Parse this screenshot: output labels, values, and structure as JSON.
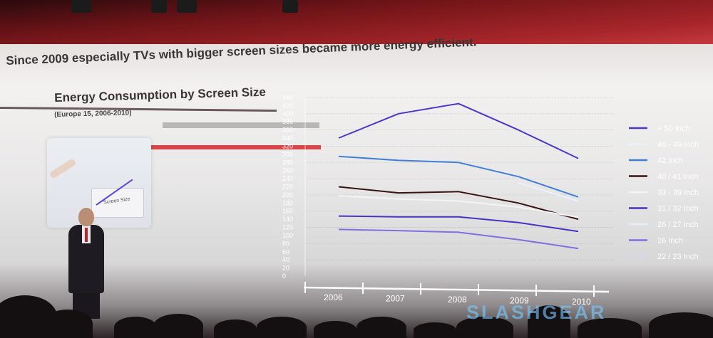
{
  "headline": "Since 2009 especially TVs with bigger screen sizes became more energy efficient.",
  "illustration": {
    "label": "Screen Size"
  },
  "watermark": "SLASHGEAR",
  "colors": {
    "slide_red": "#c33a3c",
    "accent_red_bar": "#d8464a"
  },
  "chart_data": {
    "type": "line",
    "title": "Energy Consumption by Screen Size",
    "subtitle": "(Europe 15, 2006-2010)",
    "xlabel": "",
    "ylabel": "",
    "x": [
      "2006",
      "2007",
      "2008",
      "2009",
      "2010"
    ],
    "ylim": [
      0,
      440
    ],
    "yticks": [
      0,
      20,
      40,
      60,
      80,
      100,
      120,
      140,
      160,
      180,
      200,
      220,
      240,
      260,
      280,
      300,
      320,
      340,
      360,
      380,
      400,
      420,
      440
    ],
    "legend_position": "right",
    "grid": true,
    "series": [
      {
        "name": "+ 50 Inch",
        "color": "#4a38c8",
        "values": [
          340,
          400,
          425,
          360,
          290
        ]
      },
      {
        "name": "46 - 49 Inch",
        "color": "#e8f2fb",
        "values": [
          null,
          null,
          null,
          230,
          185
        ]
      },
      {
        "name": "42 Inch",
        "color": "#3f7fd6",
        "values": [
          295,
          285,
          280,
          245,
          195
        ]
      },
      {
        "name": "40 / 41 Inch",
        "color": "#3a1214",
        "values": [
          220,
          205,
          208,
          180,
          140
        ]
      },
      {
        "name": "33 - 39 Inch",
        "color": "#f4f4f4",
        "values": [
          198,
          190,
          185,
          170,
          145
        ]
      },
      {
        "name": "31 / 32 Inch",
        "color": "#4733c4",
        "values": [
          148,
          146,
          146,
          132,
          110
        ]
      },
      {
        "name": "26 / 27 Inch",
        "color": "#e6f0f8",
        "values": [
          null,
          null,
          null,
          null,
          null
        ]
      },
      {
        "name": "26 Inch",
        "color": "#7d70e0",
        "values": [
          115,
          112,
          108,
          90,
          68
        ]
      },
      {
        "name": "22 / 23 Inch",
        "color": "#d9d6ea",
        "values": [
          null,
          null,
          null,
          null,
          null
        ]
      }
    ]
  }
}
